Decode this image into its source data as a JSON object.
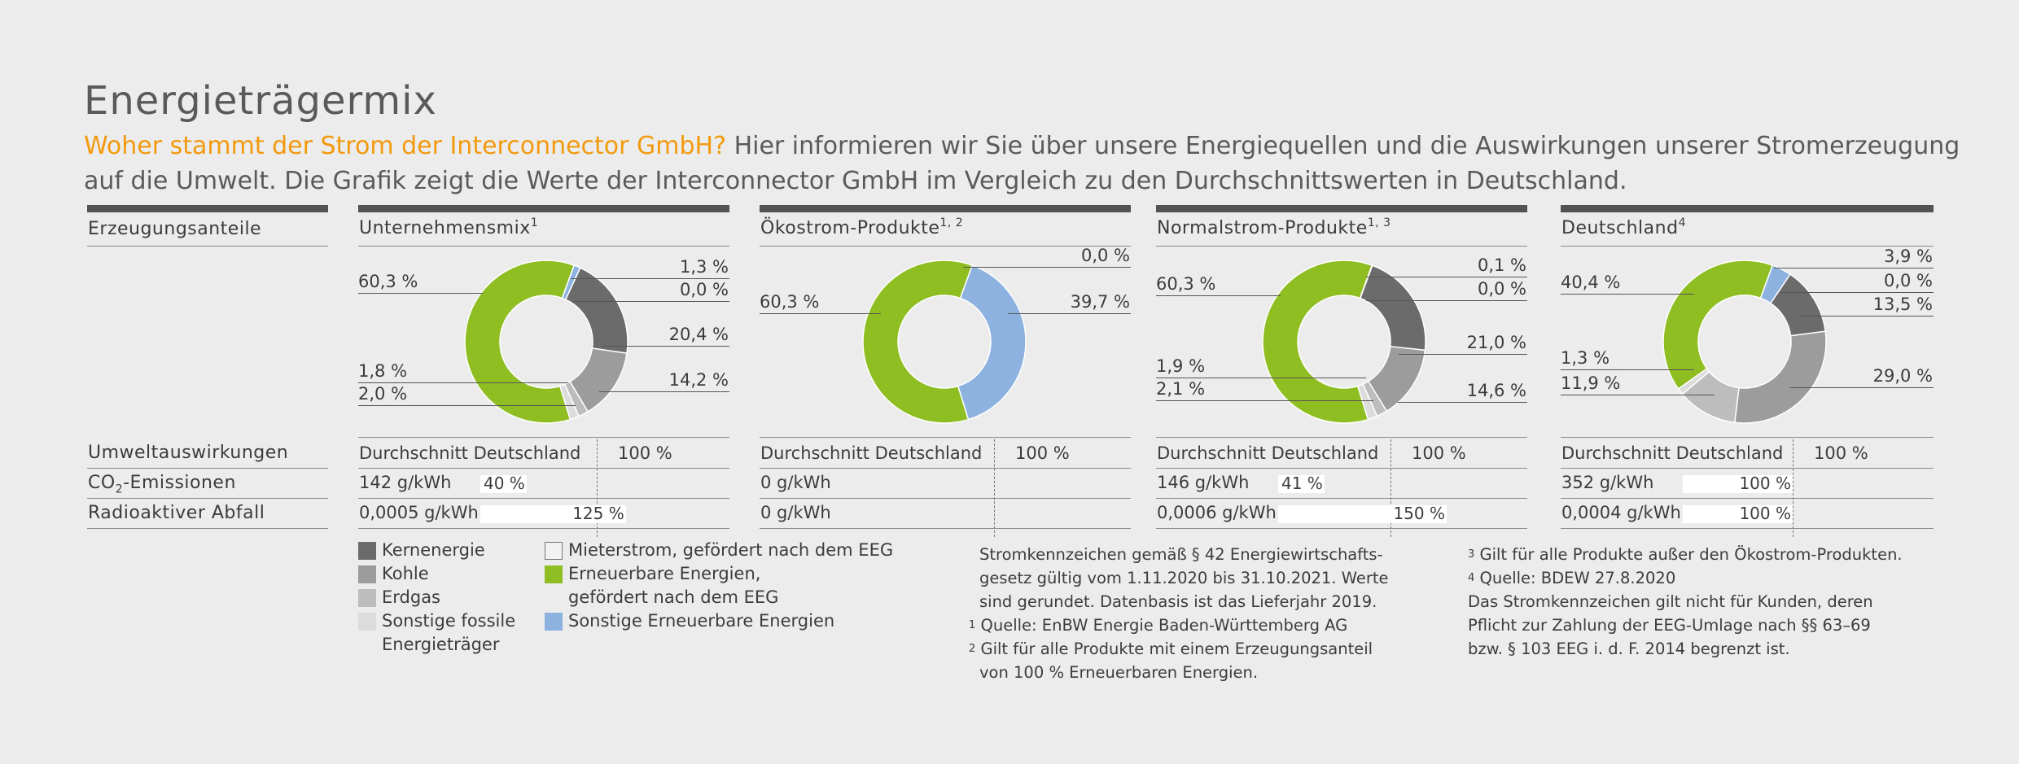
{
  "title": "Energieträgermix",
  "intro": {
    "highlight": "Woher stammt der Strom der Interconnector GmbH?",
    "text": " Hier informieren wir Sie über unsere Energiequellen und die Auswirkungen unserer Stromerzeugung auf die Umwelt. Die Grafik zeigt die Werte der Interconnector GmbH im Vergleich zu den Durchschnittswerten in Deutschland."
  },
  "row_labels": {
    "share": "Erzeugungsanteile",
    "impact": "Umweltauswirkungen",
    "co2_prefix": "CO",
    "co2_sub": "2",
    "co2_suffix": "-Emissionen",
    "waste": "Radioaktiver Abfall"
  },
  "colors": {
    "Kernenergie": "#6b6b6b",
    "Kohle": "#9c9c9c",
    "Erdgas": "#bdbdbd",
    "Sonstige fossile Energieträger": "#dcdcdc",
    "Mieterstrom": "#f2f2f2",
    "Erneuerbare EEG": "#8fbe23",
    "Sonstige Erneuerbare": "#8db2e0"
  },
  "chart_data": [
    {
      "type": "pie",
      "title": "Unternehmensmix",
      "title_sup": "1",
      "categories": [
        "Erneuerbare Energien, gefördert nach dem EEG",
        "Sonstige Erneuerbare Energien",
        "Mieterstrom, gefördert nach dem EEG",
        "Kernenergie",
        "Kohle",
        "Erdgas",
        "Sonstige fossile Energieträger"
      ],
      "values": [
        60.3,
        1.3,
        0.0,
        20.4,
        14.2,
        2.0,
        1.8
      ],
      "labels": [
        "60,3 %",
        "1,3 %",
        "0,0 %",
        "20,4 %",
        "14,2 %",
        "2,0 %",
        "1,8 %"
      ],
      "average_label": "Durchschnitt Deutschland",
      "average_pct": "100 %",
      "co2": {
        "value": "142 g/kWh",
        "percent": 40,
        "percent_label": "40 %"
      },
      "waste": {
        "value": "0,0005 g/kWh",
        "percent": 125,
        "percent_label": "125 %"
      }
    },
    {
      "type": "pie",
      "title": "Ökostrom-Produkte",
      "title_sup": "1, 2",
      "categories": [
        "Erneuerbare Energien, gefördert nach dem EEG",
        "Sonstige Erneuerbare Energien",
        "Mieterstrom, gefördert nach dem EEG"
      ],
      "values": [
        60.3,
        39.7,
        0.0
      ],
      "labels": [
        "60,3 %",
        "39,7 %",
        "0,0 %"
      ],
      "average_label": "Durchschnitt Deutschland",
      "average_pct": "100 %",
      "co2": {
        "value": "0 g/kWh",
        "percent": 0,
        "percent_label": ""
      },
      "waste": {
        "value": "0 g/kWh",
        "percent": 0,
        "percent_label": ""
      }
    },
    {
      "type": "pie",
      "title": "Normalstrom-Produkte",
      "title_sup": "1, 3",
      "categories": [
        "Erneuerbare Energien, gefördert nach dem EEG",
        "Sonstige Erneuerbare Energien",
        "Mieterstrom, gefördert nach dem EEG",
        "Kernenergie",
        "Kohle",
        "Erdgas",
        "Sonstige fossile Energieträger"
      ],
      "values": [
        60.3,
        0.1,
        0.0,
        21.0,
        14.6,
        2.1,
        1.9
      ],
      "labels": [
        "60,3 %",
        "0,1 %",
        "0,0 %",
        "21,0 %",
        "14,6 %",
        "2,1 %",
        "1,9 %"
      ],
      "average_label": "Durchschnitt Deutschland",
      "average_pct": "100 %",
      "co2": {
        "value": "146 g/kWh",
        "percent": 41,
        "percent_label": "41 %"
      },
      "waste": {
        "value": "0,0006 g/kWh",
        "percent": 150,
        "percent_label": "150 %"
      }
    },
    {
      "type": "pie",
      "title": "Deutschland",
      "title_sup": "4",
      "categories": [
        "Erneuerbare Energien, gefördert nach dem EEG",
        "Sonstige Erneuerbare Energien",
        "Mieterstrom, gefördert nach dem EEG",
        "Kernenergie",
        "Kohle",
        "Erdgas",
        "Sonstige fossile Energieträger"
      ],
      "values": [
        40.4,
        3.9,
        0.0,
        13.5,
        29.0,
        11.9,
        1.3
      ],
      "labels": [
        "40,4 %",
        "3,9 %",
        "0,0 %",
        "13,5 %",
        "29,0 %",
        "11,9 %",
        "1,3 %"
      ],
      "average_label": "Durchschnitt Deutschland",
      "average_pct": "100 %",
      "co2": {
        "value": "352 g/kWh",
        "percent": 100,
        "percent_label": "100 %"
      },
      "waste": {
        "value": "0,0004 g/kWh",
        "percent": 100,
        "percent_label": "100 %"
      }
    }
  ],
  "legend": {
    "left": [
      "Kernenergie",
      "Kohle",
      "Erdgas",
      "Sonstige fossile",
      "Energieträger"
    ],
    "right": [
      "Mieterstrom, gefördert nach dem EEG",
      "Erneuerbare Energien,",
      "gefördert nach dem EEG",
      "Sonstige Erneuerbare Energien"
    ]
  },
  "notes": {
    "a1": "Stromkennzeichen gemäß § 42 Energiewirtschafts-",
    "a2": "gesetz gültig vom 1.11.2020 bis 31.10.2021. Werte",
    "a3": "sind gerundet. Datenbasis ist das Lieferjahr 2019.",
    "a4_sup": "1",
    "a4": "Quelle: EnBW Energie Baden-Württemberg AG",
    "a5_sup": "2",
    "a5": "Gilt für alle Produkte mit einem Erzeugungsanteil",
    "a6": "von 100 % Erneuerbaren Energien.",
    "b1_sup": "3",
    "b1": "Gilt für alle Produkte außer den Ökostrom-Produkten.",
    "b2_sup": "4",
    "b2": "Quelle: BDEW 27.8.2020",
    "b3": "Das Stromkennzeichen gilt nicht für Kunden, deren",
    "b4": "Pflicht zur Zahlung der EEG-Umlage nach §§ 63–69",
    "b5": "bzw. § 103 EEG i. d. F. 2014 begrenzt ist."
  }
}
